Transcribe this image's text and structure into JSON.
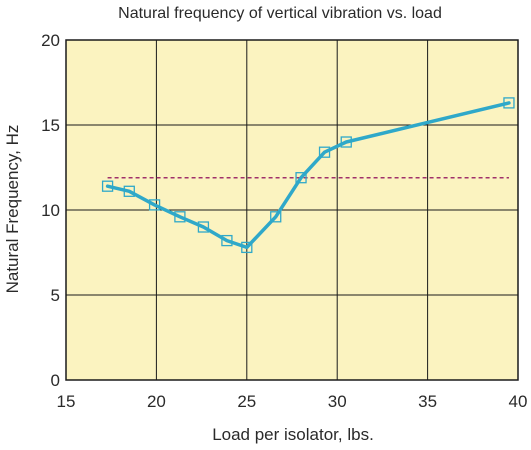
{
  "chart_data": {
    "type": "line",
    "title": "Natural frequency of vertical vibration vs. load",
    "xlabel": "Load per isolator, lbs.",
    "ylabel": "Natural Frequency, Hz",
    "xlim": [
      15,
      40
    ],
    "ylim": [
      0,
      20
    ],
    "xticks": [
      "15",
      "20",
      "25",
      "30",
      "35",
      "40"
    ],
    "yticks": [
      "0",
      "5",
      "10",
      "15",
      "20"
    ],
    "grid": true,
    "legend": "none",
    "colors": {
      "plot_background": "#fbf3c0",
      "series_line": "#2fa8c9",
      "marker": "#2fa8c9",
      "reference_line": "#a0306a",
      "grid": "#1a1a1a"
    },
    "series": [
      {
        "x": [
          17.3,
          18.5,
          19.9,
          21.3,
          22.6,
          23.9,
          25.0,
          26.6,
          28.0,
          29.3,
          30.5,
          39.5
        ],
        "y": [
          11.4,
          11.1,
          10.3,
          9.6,
          9.0,
          8.2,
          7.8,
          9.6,
          11.9,
          13.4,
          14.0,
          16.3
        ],
        "marker": "square"
      }
    ],
    "reference_lines": [
      {
        "style": "dashed",
        "y": 11.9,
        "x_start": 17.3,
        "x_end": 39.5
      }
    ]
  }
}
